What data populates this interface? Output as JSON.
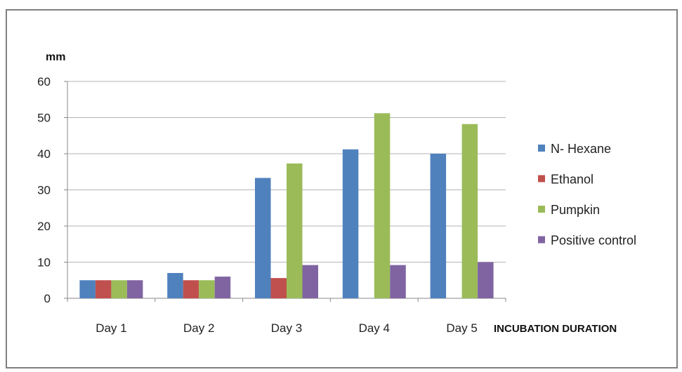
{
  "chart_data": {
    "type": "bar",
    "ylabel": "mm",
    "xlabel": "INCUBATION DURATION",
    "categories": [
      "Day 1",
      "Day 2",
      "Day 3",
      "Day 4",
      "Day 5"
    ],
    "ylim": [
      0,
      60
    ],
    "yticks": [
      0,
      10,
      20,
      30,
      40,
      50,
      60
    ],
    "grid": true,
    "legend_position": "right",
    "series": [
      {
        "name": "N- Hexane",
        "color": "#4F81BD",
        "values": [
          5,
          7,
          33.3,
          41.2,
          40
        ]
      },
      {
        "name": "Ethanol",
        "color": "#C0504D",
        "values": [
          5,
          5,
          5.6,
          0,
          0
        ]
      },
      {
        "name": "Pumpkin",
        "color": "#9BBB59",
        "values": [
          5,
          5,
          37.3,
          51.2,
          48.2
        ]
      },
      {
        "name": "Positive control",
        "color": "#8064A2",
        "values": [
          5,
          6,
          9.2,
          9.2,
          10
        ]
      }
    ]
  }
}
